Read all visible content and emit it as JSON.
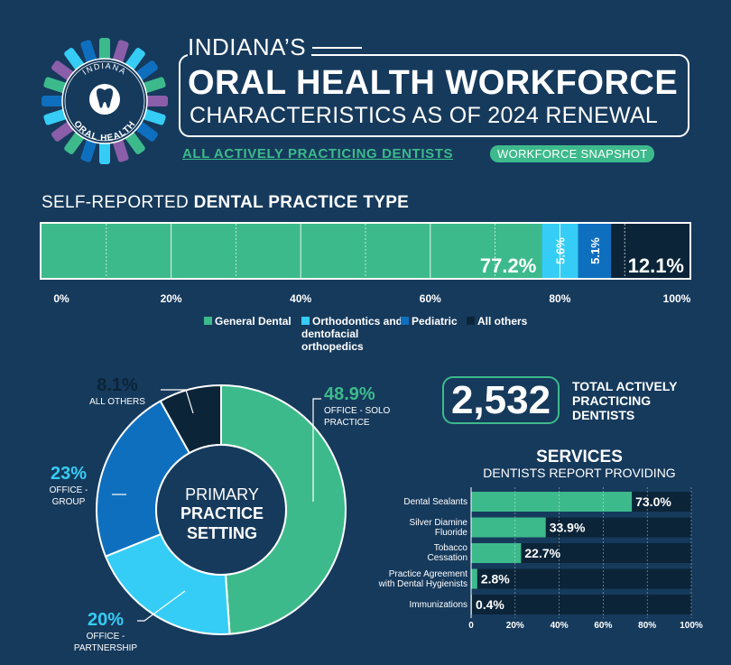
{
  "header": {
    "logo_top_text": "INDIANA",
    "logo_bottom_text": "ORAL HEALTH",
    "title_line1": "INDIANA’S",
    "title_line2": "ORAL HEALTH WORKFORCE",
    "title_line3": "CHARACTERISTICS AS OF 2024 RENEWAL",
    "subtitle_link": "ALL ACTIVELY PRACTICING DENTISTS",
    "subtitle_badge": "WORKFORCE SNAPSHOT"
  },
  "colors": {
    "background": "#163a5c",
    "green": "#3dba8c",
    "light_blue": "#35cdf5",
    "mid_blue": "#0f6fbf",
    "dark": "#0b2438",
    "logo_purple": "#8a5ea8"
  },
  "practice_type": {
    "title_light": "SELF-REPORTED ",
    "title_bold": "DENTAL PRACTICE TYPE",
    "legend": {
      "general": "General Dental",
      "ortho": "Orthodontics and dentofacial orthopedics",
      "pediatric": "Pediatric",
      "others": "All others"
    },
    "labels": [
      "77.2%",
      "5.6%",
      "5.1%",
      "12.1%"
    ]
  },
  "practice_setting": {
    "center_l1": "PRIMARY",
    "center_l2": "PRACTICE",
    "center_l3": "SETTING",
    "solo_pct": "48.9%",
    "solo_l1": "OFFICE - SOLO",
    "solo_l2": "PRACTICE",
    "partner_pct": "20%",
    "partner_l1": "OFFICE -",
    "partner_l2": "PARTNERSHIP",
    "group_pct": "23%",
    "group_l1": "OFFICE -",
    "group_l2": "GROUP",
    "others_pct": "8.1%",
    "others_l1": "ALL OTHERS"
  },
  "total": {
    "value": "2,532",
    "label": "TOTAL ACTIVELY PRACTICING DENTISTS"
  },
  "services": {
    "title": "SERVICES",
    "subtitle": "DENTISTS REPORT PROVIDING",
    "items": [
      {
        "l1": "Dental Sealants",
        "l2": "",
        "value": "73.0%"
      },
      {
        "l1": "Silver Diamine",
        "l2": "Fluoride",
        "value": "33.9%"
      },
      {
        "l1": "Tobacco",
        "l2": "Cessation",
        "value": "22.7%"
      },
      {
        "l1": "Practice Agreement",
        "l2": "with Dental Hygienists",
        "value": "2.8%"
      },
      {
        "l1": "Immunizations",
        "l2": "",
        "value": "0.4%"
      }
    ]
  },
  "chart_data": [
    {
      "type": "bar",
      "orientation": "horizontal-stacked",
      "title": "SELF-REPORTED DENTAL PRACTICE TYPE",
      "xlim": [
        0,
        100
      ],
      "xticks": [
        "0%",
        "20%",
        "40%",
        "60%",
        "80%",
        "100%"
      ],
      "series": [
        {
          "name": "General Dental",
          "values": [
            77.2
          ],
          "color": "#3dba8c"
        },
        {
          "name": "Orthodontics and dentofacial orthopedics",
          "values": [
            5.6
          ],
          "color": "#35cdf5"
        },
        {
          "name": "Pediatric",
          "values": [
            5.1
          ],
          "color": "#0f6fbf"
        },
        {
          "name": "All others",
          "values": [
            12.1
          ],
          "color": "#0b2438"
        }
      ],
      "legend": "bottom"
    },
    {
      "type": "pie",
      "style": "donut",
      "categories": [
        "OFFICE - SOLO PRACTICE",
        "OFFICE - PARTNERSHIP",
        "OFFICE - GROUP",
        "ALL OTHERS"
      ],
      "values": [
        48.9,
        20,
        23,
        8.1
      ],
      "colors": [
        "#3dba8c",
        "#35cdf5",
        "#0f6fbf",
        "#0b2438"
      ]
    },
    {
      "type": "bar",
      "orientation": "horizontal",
      "title": "SERVICES",
      "categories": [
        "Dental Sealants",
        "Silver Diamine Fluoride",
        "Tobacco Cessation",
        "Practice Agreement with Dental Hygienists",
        "Immunizations"
      ],
      "values": [
        73.0,
        33.9,
        22.7,
        2.8,
        0.4
      ],
      "xlim": [
        0,
        100
      ],
      "xticks": [
        "0",
        "20%",
        "40%",
        "60%",
        "80%",
        "100%"
      ]
    }
  ]
}
